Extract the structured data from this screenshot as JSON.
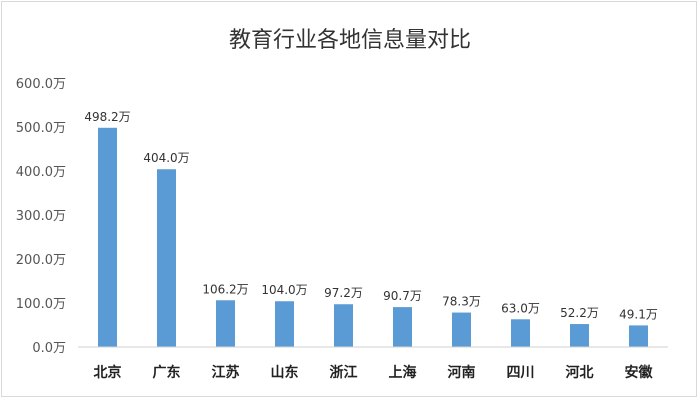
{
  "chart_data": {
    "type": "bar",
    "title": "教育行业各地信息量对比",
    "categories": [
      "北京",
      "广东",
      "江苏",
      "山东",
      "浙江",
      "上海",
      "河南",
      "四川",
      "河北",
      "安徽"
    ],
    "values": [
      498.2,
      404.0,
      106.2,
      104.0,
      97.2,
      90.7,
      78.3,
      63.0,
      52.2,
      49.1
    ],
    "data_labels": [
      "498.2万",
      "404.0万",
      "106.2万",
      "104.0万",
      "97.2万",
      "90.7万",
      "78.3万",
      "63.0万",
      "52.2万",
      "49.1万"
    ],
    "y_ticks": [
      0,
      100,
      200,
      300,
      400,
      500,
      600
    ],
    "y_tick_labels": [
      "0.0万",
      "100.0万",
      "200.0万",
      "300.0万",
      "400.0万",
      "500.0万",
      "600.0万"
    ],
    "ylim": [
      0,
      600
    ],
    "xlabel": "",
    "ylabel": "",
    "grid": false,
    "legend": "none",
    "bar_color": "#5b9bd5"
  }
}
